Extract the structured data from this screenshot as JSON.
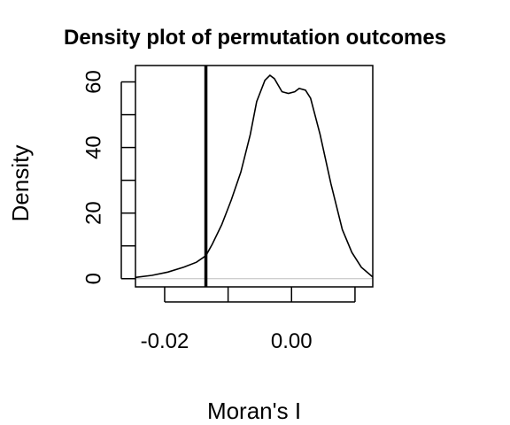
{
  "chart_data": {
    "type": "line",
    "title": "Density plot of permutation outcomes",
    "xlabel": "Moran's I",
    "ylabel": "Density",
    "xlim": [
      -0.0246,
      0.0128
    ],
    "ylim": [
      -2.5,
      65
    ],
    "x_ticks": [
      -0.02,
      -0.01,
      0.0,
      0.01
    ],
    "x_tick_labels": [
      "-0.02",
      "",
      "0.00",
      ""
    ],
    "y_ticks": [
      0,
      10,
      20,
      30,
      40,
      50,
      60
    ],
    "y_tick_labels": [
      "0",
      "",
      "20",
      "",
      "40",
      "",
      "60"
    ],
    "reference_line": {
      "x": -0.0135
    },
    "baseline": {
      "y": 0
    },
    "series": [
      {
        "points": [
          [
            -0.0246,
            0.4
          ],
          [
            -0.022,
            1.0
          ],
          [
            -0.0195,
            2.0
          ],
          [
            -0.017,
            3.5
          ],
          [
            -0.015,
            5.0
          ],
          [
            -0.0135,
            7.0
          ],
          [
            -0.0125,
            10.5
          ],
          [
            -0.011,
            16.5
          ],
          [
            -0.0095,
            24.0
          ],
          [
            -0.008,
            32.5
          ],
          [
            -0.0065,
            44.0
          ],
          [
            -0.0055,
            54.0
          ],
          [
            -0.0042,
            60.5
          ],
          [
            -0.0034,
            62.0
          ],
          [
            -0.0027,
            61.0
          ],
          [
            -0.0015,
            57.0
          ],
          [
            -0.0005,
            56.5
          ],
          [
            0.0005,
            57.0
          ],
          [
            0.0012,
            58.0
          ],
          [
            0.0022,
            57.5
          ],
          [
            0.003,
            55.0
          ],
          [
            0.0045,
            44.0
          ],
          [
            0.0062,
            29.0
          ],
          [
            0.008,
            15.0
          ],
          [
            0.0095,
            8.0
          ],
          [
            0.011,
            3.5
          ],
          [
            0.0128,
            0.5
          ]
        ]
      }
    ]
  }
}
